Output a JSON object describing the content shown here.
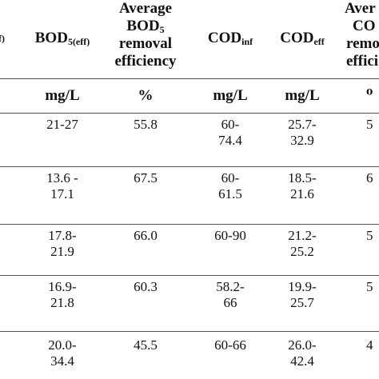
{
  "header": {
    "col0_partial": "f)",
    "bod_eff": {
      "base": "BOD",
      "sub": "5(eff)"
    },
    "avg_bod": {
      "line1": "Average",
      "line2_base": "BOD",
      "line2_sub": "5",
      "line3": "removal",
      "line4": "efficiency"
    },
    "cod_inf": {
      "base": "COD",
      "sub": "inf"
    },
    "cod_eff": {
      "base": "COD",
      "sub": "eff"
    },
    "avg_cod_partial": {
      "line1": "Aver",
      "line2": "CO",
      "line3": "remo",
      "line4": "effici"
    }
  },
  "units": {
    "bod_eff": "mg/L",
    "avg_bod": "%",
    "cod_inf": "mg/L",
    "cod_eff": "mg/L",
    "avg_cod_partial": "⁰"
  },
  "rows": [
    {
      "bod_eff": [
        "21-27"
      ],
      "avg_bod": "55.8",
      "cod_inf": [
        "60-",
        "74.4"
      ],
      "cod_eff": [
        "25.7-",
        "32.9"
      ],
      "avg_cod_partial": "5"
    },
    {
      "bod_eff": [
        "13.6 -",
        "17.1"
      ],
      "avg_bod": "67.5",
      "cod_inf": [
        "60-",
        "61.5"
      ],
      "cod_eff": [
        "18.5-",
        "21.6"
      ],
      "avg_cod_partial": "6"
    },
    {
      "bod_eff": [
        "17.8-",
        "21.9"
      ],
      "avg_bod": "66.0",
      "cod_inf": [
        "60-90"
      ],
      "cod_eff": [
        "21.2-",
        "25.2"
      ],
      "avg_cod_partial": "5"
    },
    {
      "bod_eff": [
        "16.9-",
        "21.8"
      ],
      "avg_bod": "60.3",
      "cod_inf": [
        "58.2-",
        "66"
      ],
      "cod_eff": [
        "19.9-",
        "25.7"
      ],
      "avg_cod_partial": "5"
    },
    {
      "bod_eff": [
        "20.0-",
        "34.4"
      ],
      "avg_bod": "45.5",
      "cod_inf": [
        "60-66"
      ],
      "cod_eff": [
        "26.0-",
        "42.4"
      ],
      "avg_cod_partial": "4"
    }
  ]
}
